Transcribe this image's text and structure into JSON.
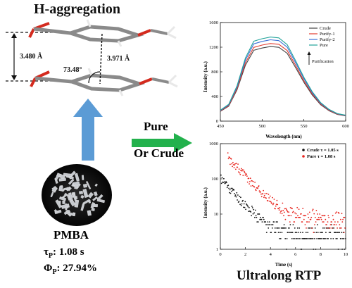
{
  "titles": {
    "aggregation": "H-aggregation",
    "rtp": "Ultralong RTP"
  },
  "molecule": {
    "name": "PMBA",
    "distance_1": "3.480 Å",
    "distance_2": "3.971 Å",
    "angle": "73.48°",
    "tau_label": "τ",
    "tau_sub": "P",
    "tau_value": ": 1.08 s",
    "phi_label": "Φ",
    "phi_sub": "P",
    "phi_value": ": 27.94%"
  },
  "arrow_labels": {
    "pure": "Pure",
    "crude": "Or Crude"
  },
  "colors": {
    "up_arrow": "#5b9bd5",
    "right_arrow": "#22b14c",
    "carbon": "#8a8a8a",
    "oxygen": "#d42a1e",
    "hydrogen": "#e8e8e8"
  },
  "chart_data": [
    {
      "type": "line",
      "xlabel": "Wavelength (nm)",
      "ylabel": "Intensity (a.u.)",
      "xlim": [
        450,
        600
      ],
      "ylim": [
        0,
        1600
      ],
      "xticks": [
        450,
        500,
        550,
        600
      ],
      "yticks": [
        0,
        400,
        800,
        1200,
        1600
      ],
      "legend_position": "top-right",
      "annotation": "Purification",
      "series": [
        {
          "name": "Crude",
          "color": "#444444",
          "peak": 1210
        },
        {
          "name": "Purify-1",
          "color": "#e23b2e",
          "peak": 1260
        },
        {
          "name": "Purify-2",
          "color": "#3a6fd8",
          "peak": 1320
        },
        {
          "name": "Pure",
          "color": "#22a39a",
          "peak": 1365
        }
      ],
      "x": [
        450,
        460,
        470,
        480,
        490,
        500,
        510,
        520,
        530,
        540,
        550,
        560,
        570,
        580,
        590,
        600
      ],
      "profile": [
        0.13,
        0.2,
        0.42,
        0.75,
        0.95,
        0.98,
        1.0,
        0.99,
        0.91,
        0.72,
        0.52,
        0.35,
        0.22,
        0.14,
        0.09,
        0.07
      ]
    },
    {
      "type": "scatter",
      "xlabel": "Time (s)",
      "ylabel": "Intensity (a.u.)",
      "xlim": [
        0,
        10
      ],
      "ylim": [
        1,
        1000
      ],
      "yscale": "log",
      "xticks": [
        0,
        2,
        4,
        6,
        8,
        10
      ],
      "yticks": [
        1,
        10,
        100,
        1000
      ],
      "legend_position": "top-right",
      "series": [
        {
          "name": "Crude τ = 1.05 s",
          "color": "#111111",
          "i0": 100,
          "tau": 1.05,
          "floor": 3
        },
        {
          "name": "Pure τ = 1.08 s",
          "color": "#e8231c",
          "i0": 420,
          "tau": 1.08,
          "floor": 8
        }
      ]
    }
  ]
}
